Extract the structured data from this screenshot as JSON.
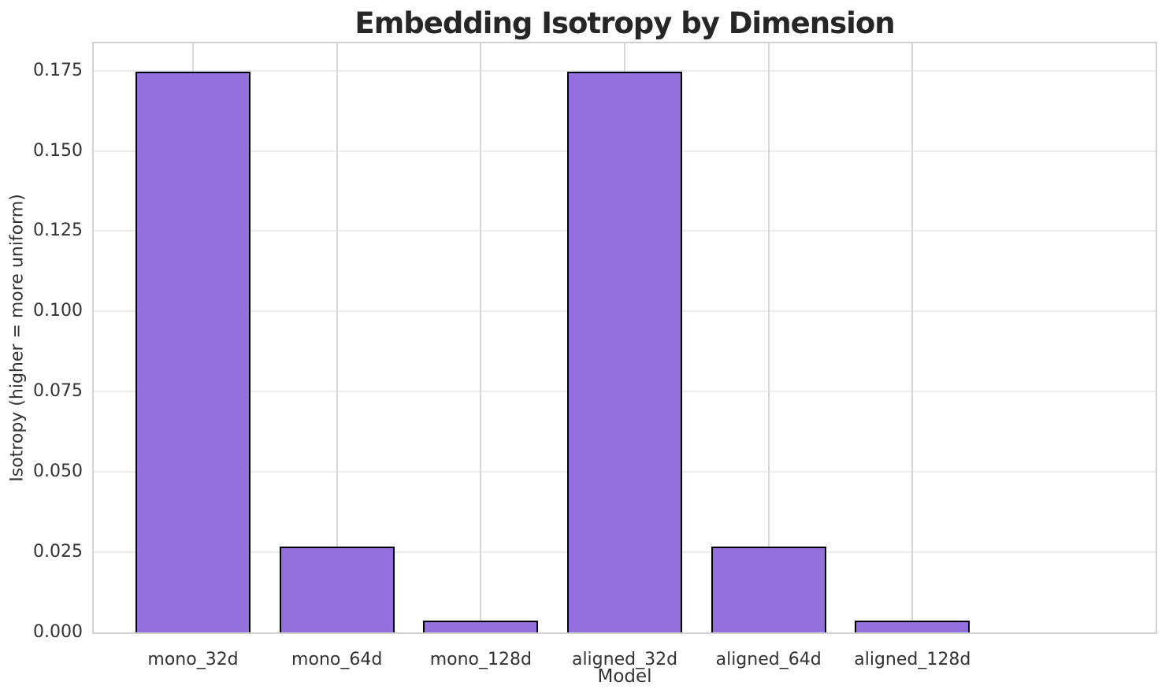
{
  "chart_data": {
    "type": "bar",
    "title": "Embedding Isotropy by Dimension",
    "xlabel": "Model",
    "ylabel": "Isotropy (higher = more uniform)",
    "categories": [
      "mono_32d",
      "mono_64d",
      "mono_128d",
      "aligned_32d",
      "aligned_64d",
      "aligned_128d"
    ],
    "values": [
      0.1747,
      0.0268,
      0.0036,
      0.1747,
      0.0268,
      0.0036
    ],
    "ylim": [
      0,
      0.1835
    ],
    "ytick_labels": [
      "0.000",
      "0.025",
      "0.050",
      "0.075",
      "0.100",
      "0.125",
      "0.150",
      "0.175"
    ],
    "ytick_values": [
      0.0,
      0.025,
      0.05,
      0.075,
      0.1,
      0.125,
      0.15,
      0.175
    ],
    "grid": "on",
    "legend": "none",
    "bar_width_fraction": 0.8,
    "bar_color": "#9370db",
    "bar_edge_color": "#000000",
    "title_color": "#262626",
    "text_color": "#333333",
    "h_gridline_color": "#ececec",
    "v_gridline_color": "#d8d8d8",
    "spine_color": "#d2d2d2"
  }
}
